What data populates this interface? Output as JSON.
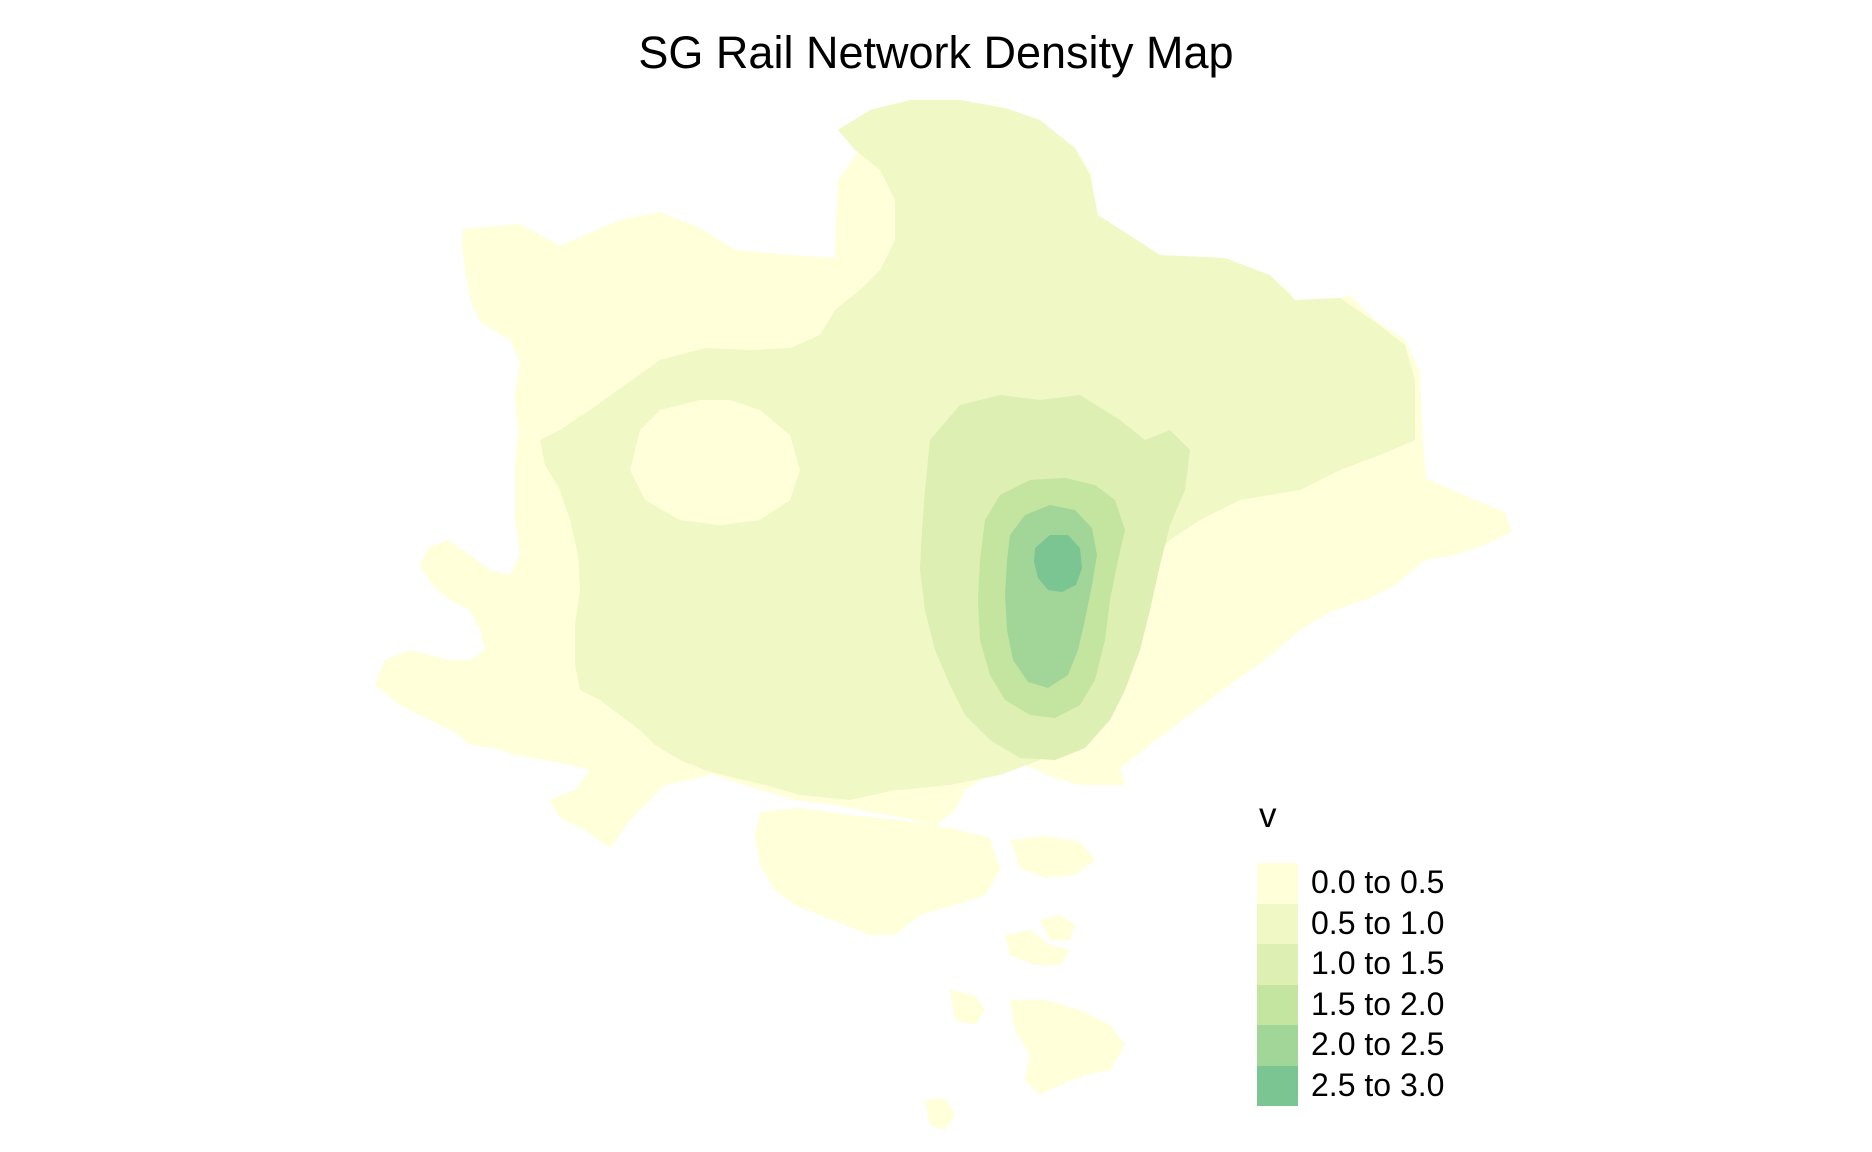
{
  "title": "SG Rail Network Density Map",
  "legend": {
    "title": "v",
    "items": [
      {
        "label": "0.0 to 0.5",
        "color": "#FFFFD9"
      },
      {
        "label": "0.5 to 1.0",
        "color": "#F0F8C6"
      },
      {
        "label": "1.0 to 1.5",
        "color": "#DDEFB2"
      },
      {
        "label": "1.5 to 2.0",
        "color": "#C3E5A0"
      },
      {
        "label": "2.0 to 2.5",
        "color": "#A2D699"
      },
      {
        "label": "2.5 to 3.0",
        "color": "#7BC593"
      }
    ]
  }
}
